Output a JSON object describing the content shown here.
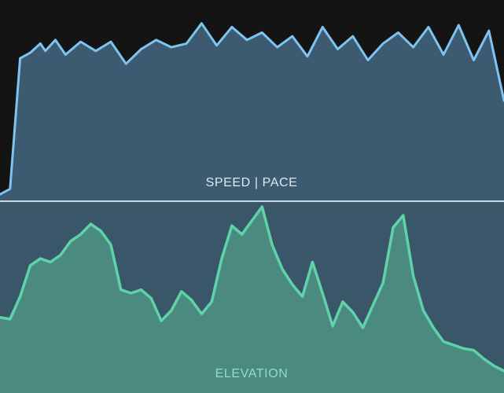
{
  "colors": {
    "background": "#141414",
    "panel_bg": "#3a5669",
    "divider": "#c7d8e2",
    "speed_line": "#7ec4f0",
    "speed_fill": "#3d5b70",
    "elevation_line": "#5fd2a9",
    "elevation_fill": "#4a8a80",
    "speed_label": "#dfe8ee",
    "elevation_label": "#8fe0c4"
  },
  "chart_data": [
    {
      "type": "area",
      "name": "speed-pace",
      "title": "SPEED | PACE",
      "ylim": [
        0,
        100
      ],
      "grid": false,
      "x": [
        0,
        2,
        4,
        6,
        8,
        9,
        11,
        13,
        16,
        19,
        22,
        25,
        28,
        31,
        34,
        37,
        40,
        43,
        46,
        49,
        52,
        55,
        58,
        61,
        64,
        67,
        70,
        73,
        76,
        79,
        82,
        85,
        88,
        91,
        94,
        97,
        100
      ],
      "values": [
        2,
        5,
        76,
        79,
        84,
        80,
        86,
        78,
        85,
        80,
        85,
        73,
        81,
        86,
        82,
        84,
        95,
        83,
        93,
        86,
        90,
        82,
        88,
        77,
        93,
        81,
        88,
        75,
        84,
        90,
        82,
        93,
        78,
        94,
        75,
        91,
        53
      ]
    },
    {
      "type": "area",
      "name": "elevation",
      "title": "ELEVATION",
      "ylim": [
        0,
        100
      ],
      "grid": false,
      "x": [
        0,
        2,
        4,
        6,
        8,
        10,
        12,
        14,
        16,
        18,
        20,
        22,
        24,
        26,
        28,
        30,
        32,
        34,
        36,
        38,
        40,
        42,
        44,
        46,
        48,
        50,
        52,
        54,
        56,
        58,
        60,
        62,
        64,
        66,
        68,
        70,
        72,
        74,
        76,
        78,
        80,
        82,
        84,
        86,
        88,
        90,
        92,
        94,
        96,
        98,
        100
      ],
      "values": [
        36,
        35,
        48,
        66,
        70,
        68,
        72,
        80,
        84,
        90,
        86,
        78,
        52,
        50,
        52,
        47,
        34,
        40,
        51,
        46,
        38,
        45,
        70,
        89,
        84,
        92,
        100,
        78,
        64,
        55,
        48,
        68,
        50,
        31,
        45,
        39,
        30,
        43,
        56,
        88,
        95,
        60,
        40,
        30,
        22,
        20,
        18,
        17,
        12,
        8,
        5
      ]
    }
  ]
}
